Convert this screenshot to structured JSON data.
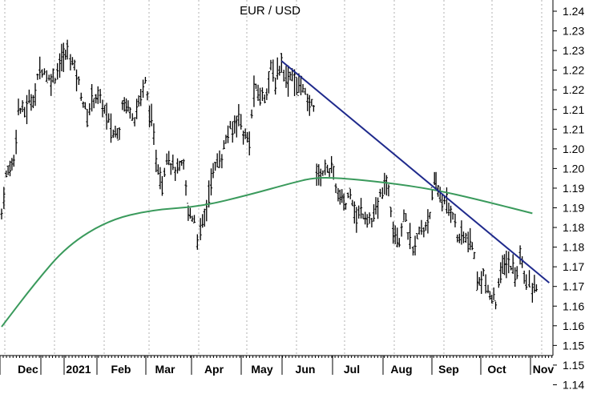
{
  "chart_data": {
    "type": "bar",
    "subtype": "ohlc",
    "title": "EUR / USD",
    "xlabel": "",
    "ylabel": "",
    "y_tick_labels": [
      "1.24",
      "1.23",
      "1.23",
      "1.22",
      "1.22",
      "1.21",
      "1.21",
      "1.20",
      "1.20",
      "1.19",
      "1.19",
      "1.18",
      "1.18",
      "1.17",
      "1.17",
      "1.16",
      "1.16",
      "1.15",
      "1.15",
      "1.14"
    ],
    "x_tick_labels": [
      "Dec",
      "2021",
      "Feb",
      "Mar",
      "Apr",
      "May",
      "Jun",
      "Jul",
      "Aug",
      "Sep",
      "Oct",
      "Nov"
    ],
    "ylim": [
      1.1375,
      1.2425
    ],
    "grid": "vertical dotted at month boundaries",
    "legend": "none",
    "colors": {
      "price": "#000000",
      "moving_average": "#3a9a5c",
      "trendline": "#1f2a8c",
      "grid": "#b0b0b0",
      "axis": "#000000"
    },
    "series": [
      {
        "kind": "price-close",
        "points": [
          [
            "Nov 23",
            1.1795
          ],
          [
            "Nov 26",
            1.1905
          ],
          [
            "Dec 1",
            1.1955
          ],
          [
            "Dec 4",
            1.2105
          ],
          [
            "Dec 8",
            1.2095
          ],
          [
            "Dec 11",
            1.2125
          ],
          [
            "Dec 15",
            1.2145
          ],
          [
            "Dec 18",
            1.223
          ],
          [
            "Dec 21",
            1.2215
          ],
          [
            "Dec 24",
            1.219
          ],
          [
            "Dec 28",
            1.22
          ],
          [
            "Dec 31",
            1.224
          ],
          [
            "Jan 5",
            1.227
          ],
          [
            "Jan 7",
            1.226
          ],
          [
            "Jan 11",
            1.2205
          ],
          [
            "Jan 14",
            1.215
          ],
          [
            "Jan 18",
            1.2075
          ],
          [
            "Jan 21",
            1.2135
          ],
          [
            "Jan 25",
            1.214
          ],
          [
            "Jan 28",
            1.2115
          ],
          [
            "Feb 1",
            1.2065
          ],
          [
            "Feb 4",
            1.203
          ],
          [
            "Feb 8",
            1.2045
          ],
          [
            "Feb 10",
            1.2125
          ],
          [
            "Feb 15",
            1.2105
          ],
          [
            "Feb 18",
            1.208
          ],
          [
            "Feb 22",
            1.2145
          ],
          [
            "Feb 25",
            1.218
          ],
          [
            "Mar 1",
            1.206
          ],
          [
            "Mar 4",
            1.196
          ],
          [
            "Mar 8",
            1.188
          ],
          [
            "Mar 11",
            1.1975
          ],
          [
            "Mar 15",
            1.193
          ],
          [
            "Mar 18",
            1.192
          ],
          [
            "Mar 22",
            1.1935
          ],
          [
            "Mar 25",
            1.18
          ],
          [
            "Mar 29",
            1.178
          ],
          [
            "Mar 31",
            1.1725
          ],
          [
            "Apr 2",
            1.174
          ],
          [
            "Apr 6",
            1.181
          ],
          [
            "Apr 9",
            1.19
          ],
          [
            "Apr 13",
            1.1945
          ],
          [
            "Apr 16",
            1.1965
          ],
          [
            "Apr 20",
            1.2035
          ],
          [
            "Apr 23",
            1.204
          ],
          [
            "Apr 27",
            1.209
          ],
          [
            "Apr 30",
            1.203
          ],
          [
            "May 4",
            1.2005
          ],
          [
            "May 7",
            1.216
          ],
          [
            "May 11",
            1.2145
          ],
          [
            "May 14",
            1.214
          ],
          [
            "May 18",
            1.222
          ],
          [
            "May 21",
            1.2185
          ],
          [
            "May 25",
            1.2245
          ],
          [
            "May 28",
            1.219
          ],
          [
            "Jun 1",
            1.221
          ],
          [
            "Jun 4",
            1.2165
          ],
          [
            "Jun 8",
            1.218
          ],
          [
            "Jun 11",
            1.211
          ],
          [
            "Jun 15",
            1.212
          ],
          [
            "Jun 17",
            1.1905
          ],
          [
            "Jun 21",
            1.1915
          ],
          [
            "Jun 24",
            1.1935
          ],
          [
            "Jun 28",
            1.191
          ],
          [
            "Jul 1",
            1.1845
          ],
          [
            "Jul 6",
            1.182
          ],
          [
            "Jul 9",
            1.187
          ],
          [
            "Jul 13",
            1.1775
          ],
          [
            "Jul 16",
            1.1805
          ],
          [
            "Jul 20",
            1.1785
          ],
          [
            "Jul 23",
            1.177
          ],
          [
            "Jul 27",
            1.1815
          ],
          [
            "Jul 30",
            1.187
          ],
          [
            "Aug 3",
            1.187
          ],
          [
            "Aug 6",
            1.176
          ],
          [
            "Aug 10",
            1.172
          ],
          [
            "Aug 13",
            1.1795
          ],
          [
            "Aug 17",
            1.171
          ],
          [
            "Aug 19",
            1.168
          ],
          [
            "Aug 23",
            1.174
          ],
          [
            "Aug 26",
            1.1745
          ],
          [
            "Aug 30",
            1.18
          ],
          [
            "Sep 2",
            1.1875
          ],
          [
            "Sep 3",
            1.188
          ],
          [
            "Sep 7",
            1.1835
          ],
          [
            "Sep 10",
            1.1815
          ],
          [
            "Sep 14",
            1.18
          ],
          [
            "Sep 17",
            1.1725
          ],
          [
            "Sep 21",
            1.1725
          ],
          [
            "Sep 24",
            1.1715
          ],
          [
            "Sep 28",
            1.168
          ],
          [
            "Sep 30",
            1.158
          ],
          [
            "Oct 4",
            1.162
          ],
          [
            "Oct 7",
            1.1555
          ],
          [
            "Oct 12",
            1.1535
          ],
          [
            "Oct 14",
            1.16
          ],
          [
            "Oct 19",
            1.1655
          ],
          [
            "Oct 22",
            1.164
          ],
          [
            "Oct 26",
            1.161
          ],
          [
            "Oct 28",
            1.168
          ],
          [
            "Nov 1",
            1.1595
          ],
          [
            "Nov 3",
            1.158
          ],
          [
            "Nov 5",
            1.1565
          ],
          [
            "Nov 9",
            1.159
          ]
        ]
      },
      {
        "kind": "moving-average",
        "points": [
          [
            "Nov 23",
            1.146
          ],
          [
            "Dec 15",
            1.159
          ],
          [
            "Jan 5",
            1.17
          ],
          [
            "Feb 1",
            1.1775
          ],
          [
            "Mar 1",
            1.1805
          ],
          [
            "Apr 2",
            1.1815
          ],
          [
            "May 4",
            1.185
          ],
          [
            "Jun 1",
            1.1885
          ],
          [
            "Jun 15",
            1.19
          ],
          [
            "Jul 1",
            1.19
          ],
          [
            "Aug 3",
            1.1885
          ],
          [
            "Sep 2",
            1.1865
          ],
          [
            "Oct 1",
            1.1835
          ],
          [
            "Nov 5",
            1.1795
          ]
        ]
      },
      {
        "kind": "trendline",
        "points": [
          [
            "May 25",
            1.2245
          ],
          [
            "Nov 16",
            1.159
          ]
        ]
      }
    ]
  }
}
